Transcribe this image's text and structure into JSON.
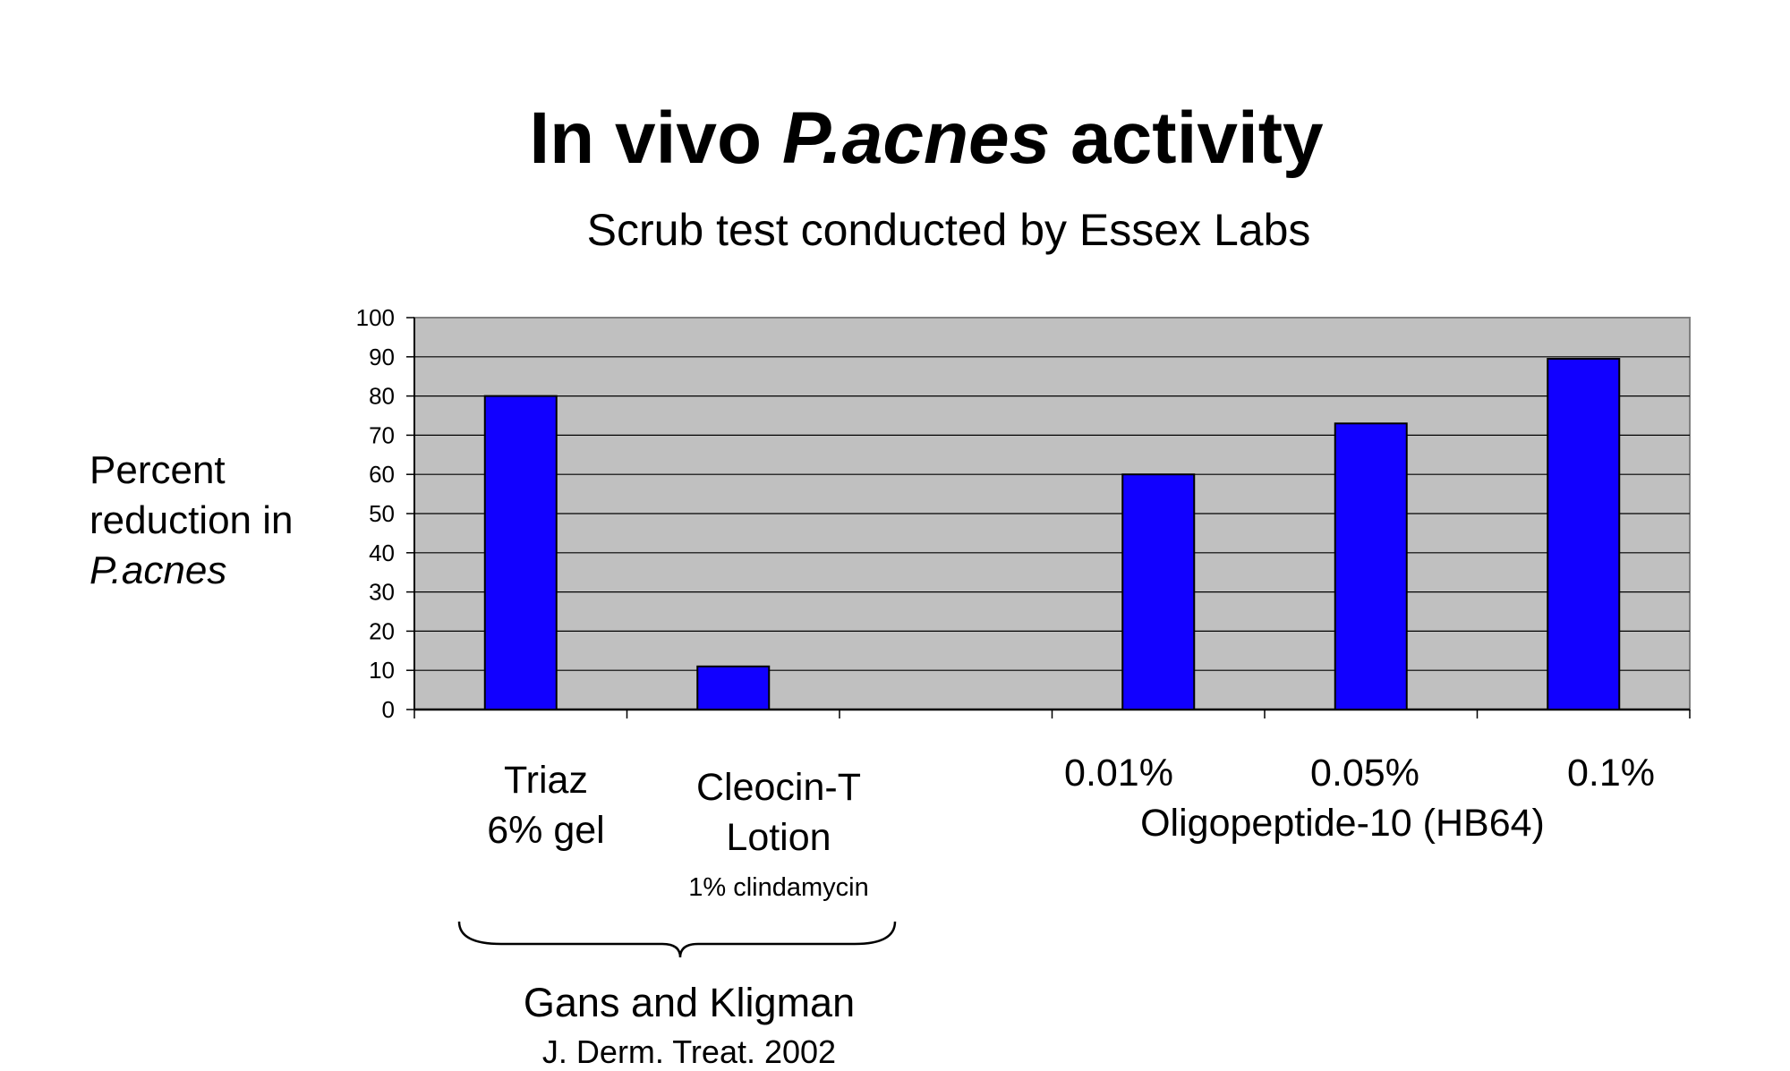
{
  "title_parts": {
    "pre": "In vivo ",
    "italic": "P.acnes",
    "post": " activity"
  },
  "subtitle": "Scrub test conducted by Essex Labs",
  "ylabel": {
    "line1": "Percent",
    "line2": "reduction in",
    "line3": "P.acnes"
  },
  "categories": {
    "triaz": {
      "line1": "Triaz",
      "line2": "6% gel"
    },
    "cleocin": {
      "line1": "Cleocin-T",
      "line2": "Lotion",
      "note": "1% clindamycin"
    },
    "c001": "0.01%",
    "c005": "0.05%",
    "c01": "0.1%",
    "group": "Oligopeptide-10 (HB64)"
  },
  "reference": {
    "authors": "Gans and Kligman",
    "journal": "J. Derm. Treat. 2002"
  },
  "colors": {
    "bar": "#1100ff",
    "plot_bg": "#c0c0c0"
  },
  "chart_data": {
    "type": "bar",
    "categories": [
      "Triaz 6% gel",
      "Cleocin-T Lotion 1% clindamycin",
      "",
      "0.01%",
      "0.05%",
      "0.1%"
    ],
    "values": [
      80,
      11,
      null,
      60,
      73,
      89.5
    ],
    "ylim": [
      0,
      100
    ],
    "yticks": [
      "0",
      "10",
      "20",
      "30",
      "40",
      "50",
      "60",
      "70",
      "80",
      "90",
      "100"
    ],
    "grid": true,
    "legend": "none"
  }
}
